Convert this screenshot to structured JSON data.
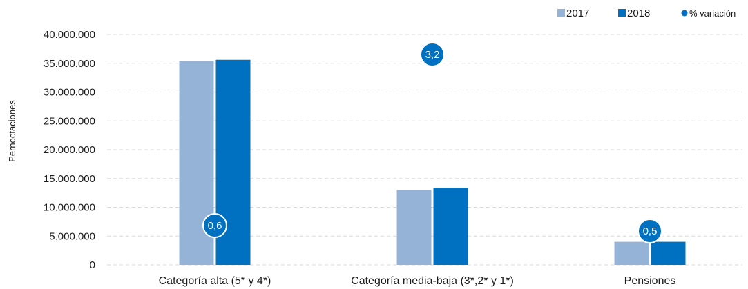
{
  "chart_data": {
    "type": "bar",
    "ylabel": "Pernoctaciones",
    "yticks": [
      "0",
      "5.000.000",
      "10.000.000",
      "15.000.000",
      "20.000.000",
      "25.000.000",
      "30.000.000",
      "35.000.000",
      "40.000.000"
    ],
    "ylim": [
      0,
      40000000
    ],
    "categories": [
      "Categoría alta (5* y 4*)",
      "Categoría media-baja (3*,2* y 1*)",
      "Pensiones"
    ],
    "series": [
      {
        "name": "2017",
        "values": [
          35400000,
          13000000,
          4000000
        ],
        "color": "#95b3d7"
      },
      {
        "name": "2018",
        "values": [
          35600000,
          13400000,
          4000000
        ],
        "color": "#0070c0"
      }
    ],
    "variation": {
      "name": "% variación",
      "values": [
        0.6,
        3.2,
        0.5
      ],
      "labels": [
        "0,6",
        "3,2",
        "0,5"
      ],
      "color": "#0070c0"
    },
    "grid": true,
    "legend": "top-right"
  }
}
